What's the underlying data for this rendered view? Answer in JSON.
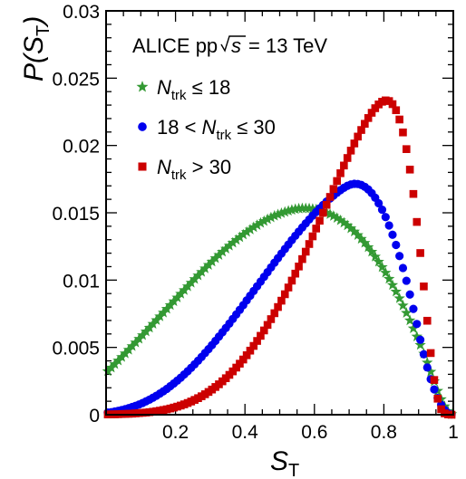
{
  "chart_data": {
    "type": "scatter",
    "annotation": {
      "label": "ALICE pp",
      "energy": "= 13 TeV"
    },
    "xlabel": {
      "symbol": "S",
      "sub": "T"
    },
    "ylabel": {
      "func": "P(",
      "symbol": "S",
      "sub": "T",
      "close": ")"
    },
    "xlim": [
      0,
      1
    ],
    "ylim": [
      0,
      0.03
    ],
    "x_ticks": [
      {
        "value": 0.2,
        "label": "0.2"
      },
      {
        "value": 0.4,
        "label": "0.4"
      },
      {
        "value": 0.6,
        "label": "0.6"
      },
      {
        "value": 0.8,
        "label": "0.8"
      },
      {
        "value": 1.0,
        "label": "1"
      }
    ],
    "y_ticks": [
      {
        "value": 0,
        "label": "0"
      },
      {
        "value": 0.005,
        "label": "0.005"
      },
      {
        "value": 0.01,
        "label": "0.01"
      },
      {
        "value": 0.015,
        "label": "0.015"
      },
      {
        "value": 0.02,
        "label": "0.02"
      },
      {
        "value": 0.025,
        "label": "0.025"
      },
      {
        "value": 0.03,
        "label": "0.03"
      }
    ],
    "series": [
      {
        "name": "N_trk ≤ 18",
        "legend": {
          "pre": "",
          "sym": "N",
          "sub": "trk",
          "post": " ≤ 18"
        },
        "marker": "star",
        "color": "#339933",
        "x": [
          0.005,
          0.015,
          0.025,
          0.035,
          0.045,
          0.055,
          0.065,
          0.075,
          0.085,
          0.095,
          0.105,
          0.115,
          0.125,
          0.135,
          0.145,
          0.155,
          0.165,
          0.175,
          0.185,
          0.195,
          0.205,
          0.215,
          0.225,
          0.235,
          0.245,
          0.255,
          0.265,
          0.275,
          0.285,
          0.295,
          0.305,
          0.315,
          0.325,
          0.335,
          0.345,
          0.355,
          0.365,
          0.375,
          0.385,
          0.395,
          0.405,
          0.415,
          0.425,
          0.435,
          0.445,
          0.455,
          0.465,
          0.475,
          0.485,
          0.495,
          0.505,
          0.515,
          0.525,
          0.535,
          0.545,
          0.555,
          0.565,
          0.575,
          0.585,
          0.595,
          0.605,
          0.615,
          0.625,
          0.635,
          0.645,
          0.655,
          0.665,
          0.675,
          0.685,
          0.695,
          0.705,
          0.715,
          0.725,
          0.735,
          0.745,
          0.755,
          0.765,
          0.775,
          0.785,
          0.795,
          0.805,
          0.815,
          0.825,
          0.835,
          0.845,
          0.855,
          0.865,
          0.875,
          0.885,
          0.895,
          0.905,
          0.915,
          0.925,
          0.935,
          0.945,
          0.955,
          0.965,
          0.975,
          0.985,
          0.995
        ],
        "y": [
          0.00323,
          0.00349,
          0.00375,
          0.00402,
          0.00428,
          0.00455,
          0.00482,
          0.00509,
          0.00536,
          0.00563,
          0.0059,
          0.00618,
          0.00646,
          0.00674,
          0.00702,
          0.0073,
          0.00758,
          0.00786,
          0.00814,
          0.00842,
          0.0087,
          0.00898,
          0.00925,
          0.00953,
          0.0098,
          0.01007,
          0.01034,
          0.0106,
          0.01086,
          0.01112,
          0.01137,
          0.01162,
          0.01186,
          0.0121,
          0.01233,
          0.01255,
          0.01277,
          0.01298,
          0.01318,
          0.01338,
          0.01357,
          0.01375,
          0.01392,
          0.01408,
          0.01424,
          0.01438,
          0.01452,
          0.01465,
          0.01477,
          0.01487,
          0.01497,
          0.01506,
          0.01514,
          0.01521,
          0.01527,
          0.01531,
          0.01533,
          0.01533,
          0.01532,
          0.01529,
          0.01524,
          0.01518,
          0.0151,
          0.015,
          0.01489,
          0.01476,
          0.01461,
          0.01444,
          0.01426,
          0.01406,
          0.01384,
          0.0136,
          0.01334,
          0.01306,
          0.01276,
          0.01244,
          0.0121,
          0.01174,
          0.01136,
          0.01096,
          0.01054,
          0.01009,
          0.00963,
          0.00914,
          0.00864,
          0.00811,
          0.00756,
          0.007,
          0.00641,
          0.0058,
          0.00518,
          0.00453,
          0.00387,
          0.00319,
          0.00248,
          0.00177,
          0.00115,
          0.00062,
          0.00025,
          4e-05
        ]
      },
      {
        "name": "18 < N_trk ≤ 30",
        "legend": {
          "pre": "18 < ",
          "sym": "N",
          "sub": "trk",
          "post": " ≤ 30"
        },
        "marker": "circle",
        "color": "#0000ee",
        "x": [
          0.005,
          0.015,
          0.025,
          0.035,
          0.045,
          0.055,
          0.065,
          0.075,
          0.085,
          0.095,
          0.105,
          0.115,
          0.125,
          0.135,
          0.145,
          0.155,
          0.165,
          0.175,
          0.185,
          0.195,
          0.205,
          0.215,
          0.225,
          0.235,
          0.245,
          0.255,
          0.265,
          0.275,
          0.285,
          0.295,
          0.305,
          0.315,
          0.325,
          0.335,
          0.345,
          0.355,
          0.365,
          0.375,
          0.385,
          0.395,
          0.405,
          0.415,
          0.425,
          0.435,
          0.445,
          0.455,
          0.465,
          0.475,
          0.485,
          0.495,
          0.505,
          0.515,
          0.525,
          0.535,
          0.545,
          0.555,
          0.565,
          0.575,
          0.585,
          0.595,
          0.605,
          0.615,
          0.625,
          0.635,
          0.645,
          0.655,
          0.665,
          0.675,
          0.685,
          0.695,
          0.705,
          0.715,
          0.725,
          0.735,
          0.745,
          0.755,
          0.765,
          0.775,
          0.785,
          0.795,
          0.805,
          0.815,
          0.825,
          0.835,
          0.845,
          0.855,
          0.865,
          0.875,
          0.885,
          0.895,
          0.905,
          0.915,
          0.925,
          0.935,
          0.945,
          0.955,
          0.965,
          0.975,
          0.985,
          0.995
        ],
        "y": [
          0.00016,
          0.00019,
          0.00024,
          0.00029,
          0.00035,
          0.00041,
          0.00049,
          0.00057,
          0.00066,
          0.00076,
          0.00087,
          0.00099,
          0.00112,
          0.00126,
          0.00141,
          0.00157,
          0.00174,
          0.00192,
          0.00212,
          0.00232,
          0.00253,
          0.00275,
          0.00299,
          0.00323,
          0.00348,
          0.00374,
          0.00401,
          0.00429,
          0.00458,
          0.00487,
          0.00517,
          0.00548,
          0.0058,
          0.00612,
          0.00644,
          0.00677,
          0.00711,
          0.00745,
          0.00779,
          0.00814,
          0.00849,
          0.00884,
          0.00919,
          0.00954,
          0.00989,
          0.01024,
          0.01059,
          0.01094,
          0.01129,
          0.01163,
          0.01197,
          0.01231,
          0.01264,
          0.01297,
          0.01329,
          0.0136,
          0.01391,
          0.01421,
          0.0145,
          0.01479,
          0.01506,
          0.01533,
          0.01558,
          0.01583,
          0.01606,
          0.01628,
          0.01649,
          0.01668,
          0.01686,
          0.017,
          0.0171,
          0.01715,
          0.01714,
          0.01707,
          0.01693,
          0.01673,
          0.01646,
          0.01612,
          0.01571,
          0.01523,
          0.01468,
          0.01406,
          0.01337,
          0.01261,
          0.01179,
          0.0109,
          0.00995,
          0.00893,
          0.00786,
          0.00674,
          0.00557,
          0.00449,
          0.00351,
          0.00264,
          0.00188,
          0.00124,
          0.00073,
          0.00035,
          0.00012,
          2e-05
        ]
      },
      {
        "name": "N_trk > 30",
        "legend": {
          "pre": "",
          "sym": "N",
          "sub": "trk",
          "post": " > 30"
        },
        "marker": "square",
        "color": "#cc0000",
        "x": [
          0.005,
          0.015,
          0.025,
          0.035,
          0.045,
          0.055,
          0.065,
          0.075,
          0.085,
          0.095,
          0.105,
          0.115,
          0.125,
          0.135,
          0.145,
          0.155,
          0.165,
          0.175,
          0.185,
          0.195,
          0.205,
          0.215,
          0.225,
          0.235,
          0.245,
          0.255,
          0.265,
          0.275,
          0.285,
          0.295,
          0.305,
          0.315,
          0.325,
          0.335,
          0.345,
          0.355,
          0.365,
          0.375,
          0.385,
          0.395,
          0.405,
          0.415,
          0.425,
          0.435,
          0.445,
          0.455,
          0.465,
          0.475,
          0.485,
          0.495,
          0.505,
          0.515,
          0.525,
          0.535,
          0.545,
          0.555,
          0.565,
          0.575,
          0.585,
          0.595,
          0.605,
          0.615,
          0.625,
          0.635,
          0.645,
          0.655,
          0.665,
          0.675,
          0.685,
          0.695,
          0.705,
          0.715,
          0.725,
          0.735,
          0.745,
          0.755,
          0.765,
          0.775,
          0.785,
          0.795,
          0.805,
          0.815,
          0.825,
          0.835,
          0.845,
          0.855,
          0.865,
          0.875,
          0.885,
          0.895,
          0.905,
          0.915,
          0.925,
          0.935,
          0.945,
          0.955,
          0.965,
          0.975,
          0.985,
          0.995
        ],
        "y": [
          2e-05,
          3e-05,
          3e-05,
          4e-05,
          5e-05,
          6e-05,
          7e-05,
          8e-05,
          0.0001,
          0.00012,
          0.00014,
          0.00016,
          0.00019,
          0.00022,
          0.00026,
          0.0003,
          0.00035,
          0.0004,
          0.00046,
          0.00053,
          0.0006,
          0.00068,
          0.00077,
          0.00087,
          0.00098,
          0.0011,
          0.00123,
          0.00137,
          0.00152,
          0.00169,
          0.00187,
          0.00206,
          0.00226,
          0.00248,
          0.00271,
          0.00296,
          0.00322,
          0.0035,
          0.00379,
          0.0041,
          0.00442,
          0.00476,
          0.00511,
          0.00548,
          0.00586,
          0.00626,
          0.00667,
          0.0071,
          0.00754,
          0.008,
          0.00847,
          0.00895,
          0.00945,
          0.00996,
          0.01048,
          0.01101,
          0.01156,
          0.01211,
          0.01268,
          0.01325,
          0.01383,
          0.01441,
          0.015,
          0.01559,
          0.01618,
          0.01677,
          0.01736,
          0.01794,
          0.01851,
          0.01907,
          0.01962,
          0.02015,
          0.02066,
          0.02115,
          0.02161,
          0.02204,
          0.02243,
          0.02277,
          0.02305,
          0.02325,
          0.02335,
          0.0233,
          0.02307,
          0.02262,
          0.02193,
          0.02097,
          0.01973,
          0.01821,
          0.0164,
          0.01432,
          0.01201,
          0.00953,
          0.00698,
          0.00458,
          0.00258,
          0.00119,
          0.00041,
          0.0001,
          2e-05,
          0.0
        ]
      }
    ]
  }
}
